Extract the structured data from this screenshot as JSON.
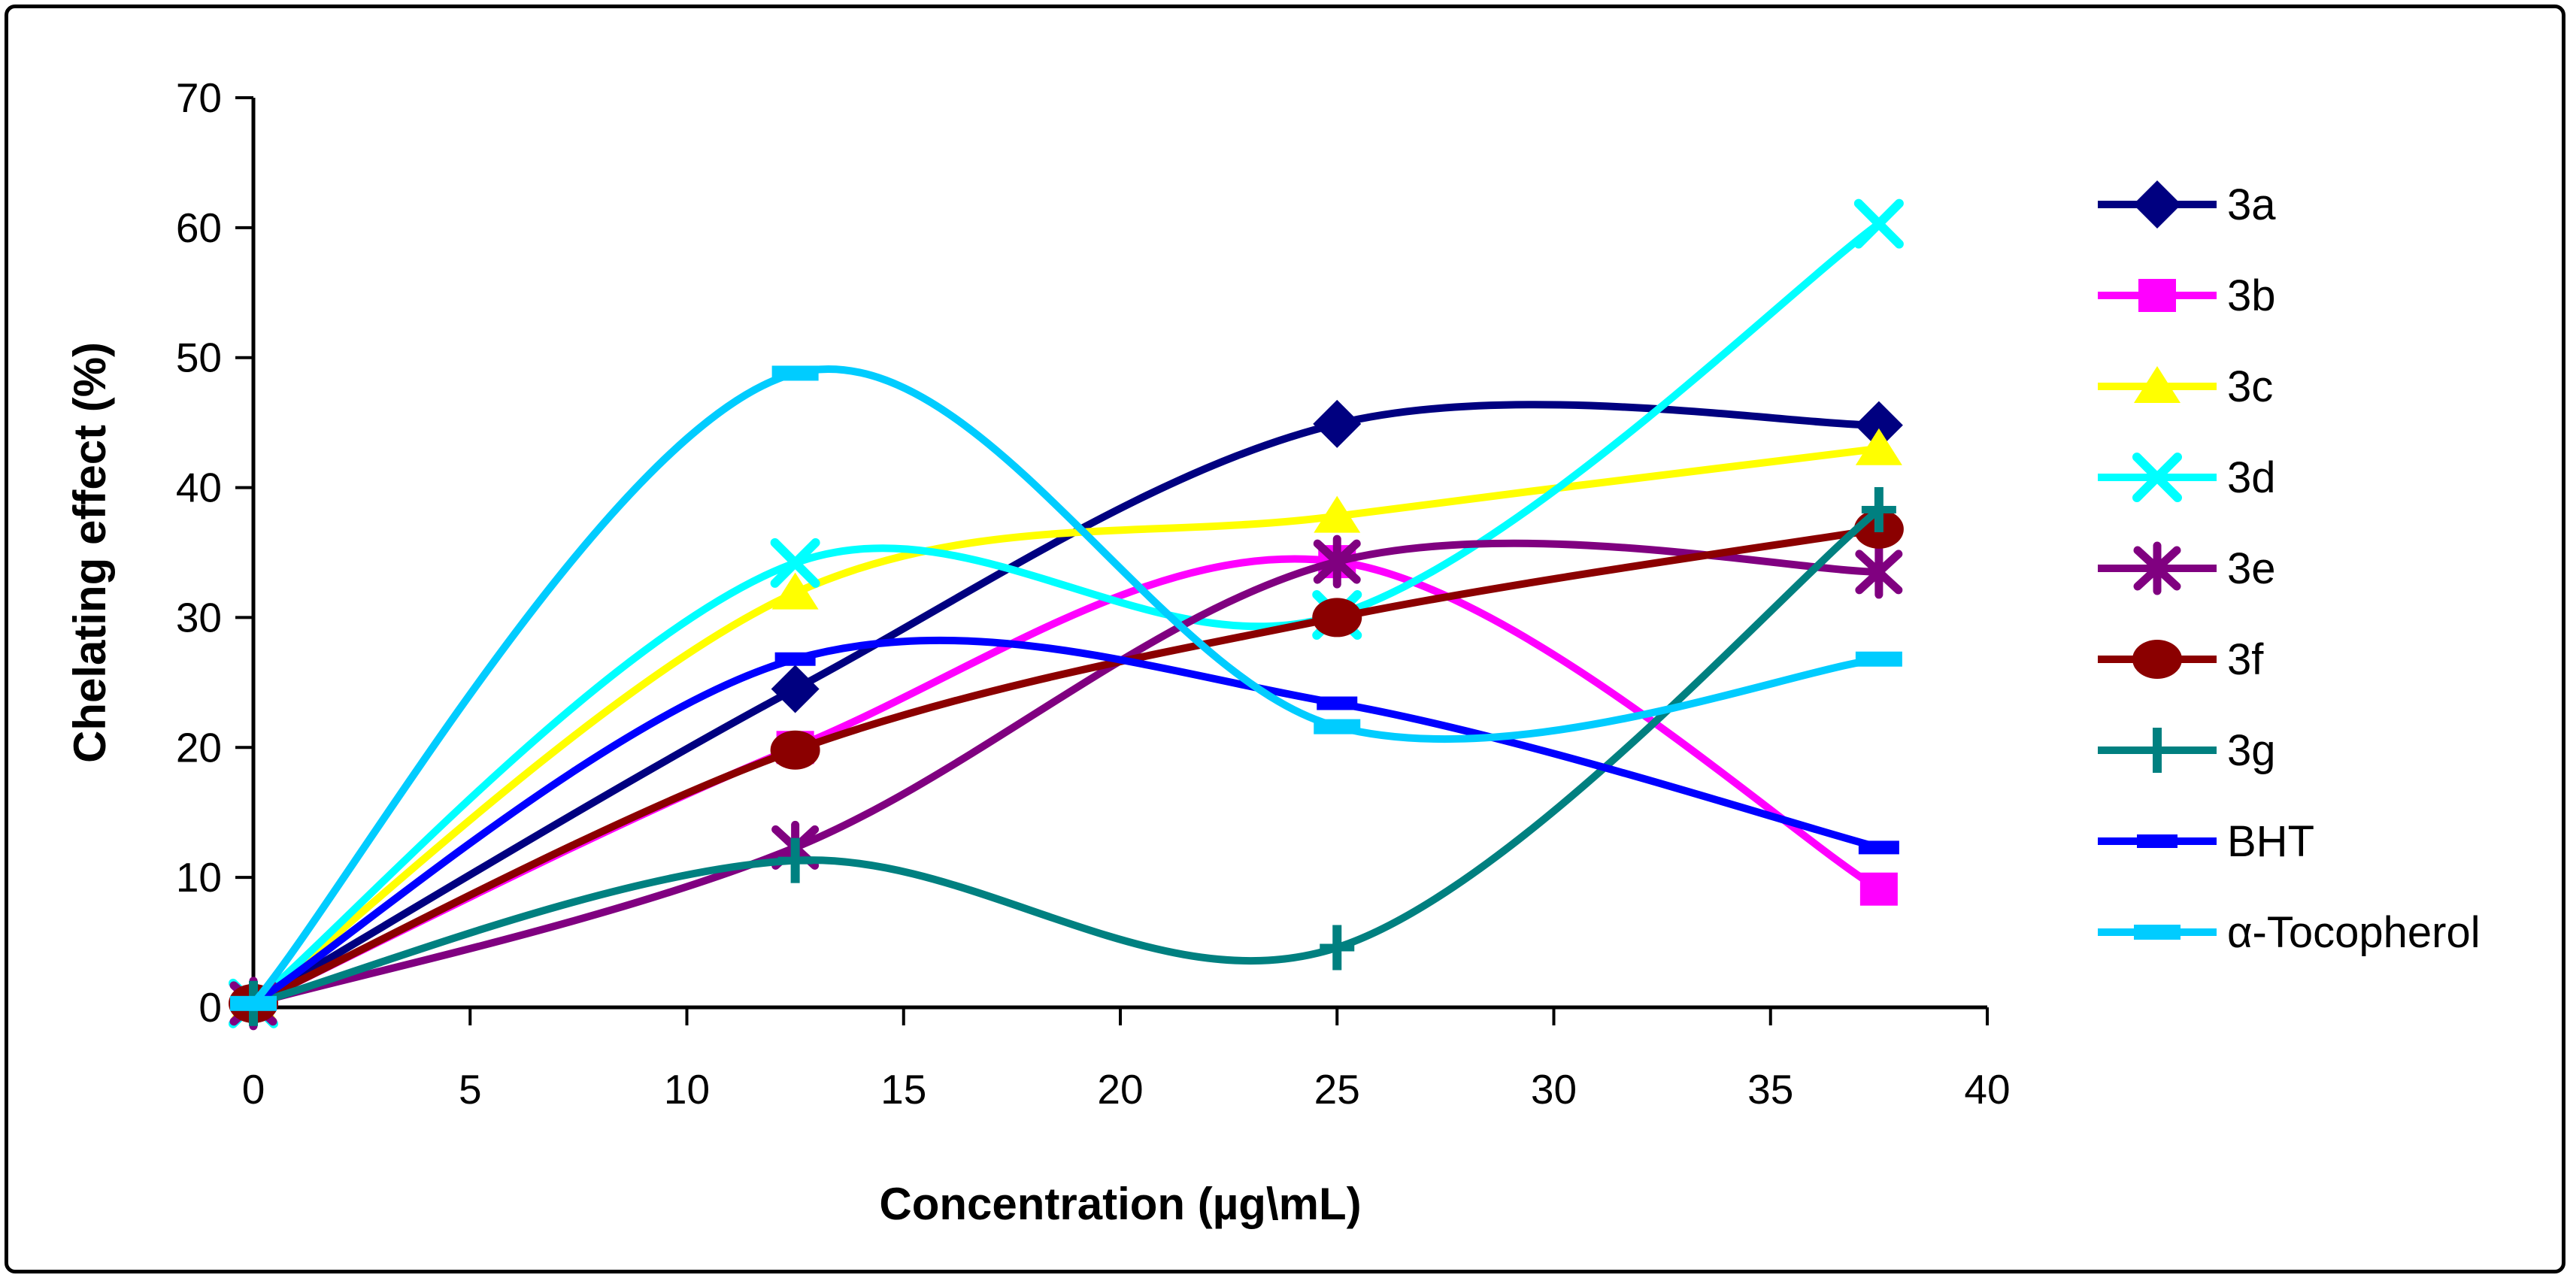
{
  "chart_data": {
    "type": "line",
    "smoothed": true,
    "title": "",
    "xlabel": "Concentration (µg\\mL)",
    "ylabel": "Chelating effect (%)",
    "xlim": [
      0,
      40
    ],
    "ylim": [
      0,
      70
    ],
    "xticks": [
      0,
      5,
      10,
      15,
      20,
      25,
      30,
      35,
      40
    ],
    "yticks": [
      0,
      10,
      20,
      30,
      40,
      50,
      60,
      70
    ],
    "grid": false,
    "legend_position": "right",
    "axis_color": "#000000",
    "x": [
      0,
      12.5,
      25,
      37.5
    ],
    "series": [
      {
        "name": "3a",
        "color": "#000080",
        "marker": "diamond",
        "values": [
          0.3,
          24.5,
          44.9,
          44.8
        ]
      },
      {
        "name": "3b",
        "color": "#FF00FF",
        "marker": "square",
        "values": [
          0.3,
          20.0,
          34.3,
          9.1
        ]
      },
      {
        "name": "3c",
        "color": "#FFFF00",
        "marker": "triangle",
        "values": [
          0.3,
          31.9,
          37.8,
          43.0
        ]
      },
      {
        "name": "3d",
        "color": "#00FFFF",
        "marker": "x",
        "values": [
          0.3,
          34.2,
          30.2,
          60.3
        ]
      },
      {
        "name": "3e",
        "color": "#800080",
        "marker": "asterisk",
        "values": [
          0.3,
          12.3,
          34.3,
          33.5
        ]
      },
      {
        "name": "3f",
        "color": "#8B0000",
        "marker": "circle",
        "values": [
          0.3,
          19.8,
          30.0,
          36.8
        ]
      },
      {
        "name": "3g",
        "color": "#008080",
        "marker": "plus",
        "values": [
          0.3,
          11.3,
          4.6,
          38.3
        ]
      },
      {
        "name": "BHT",
        "color": "#0000FF",
        "marker": "dash",
        "values": [
          0.3,
          26.8,
          23.4,
          12.3
        ]
      },
      {
        "name": "α-Tocopherol",
        "color": "#00CCFF",
        "marker": "dash-wide",
        "values": [
          0.3,
          48.8,
          21.6,
          26.8
        ]
      }
    ]
  }
}
